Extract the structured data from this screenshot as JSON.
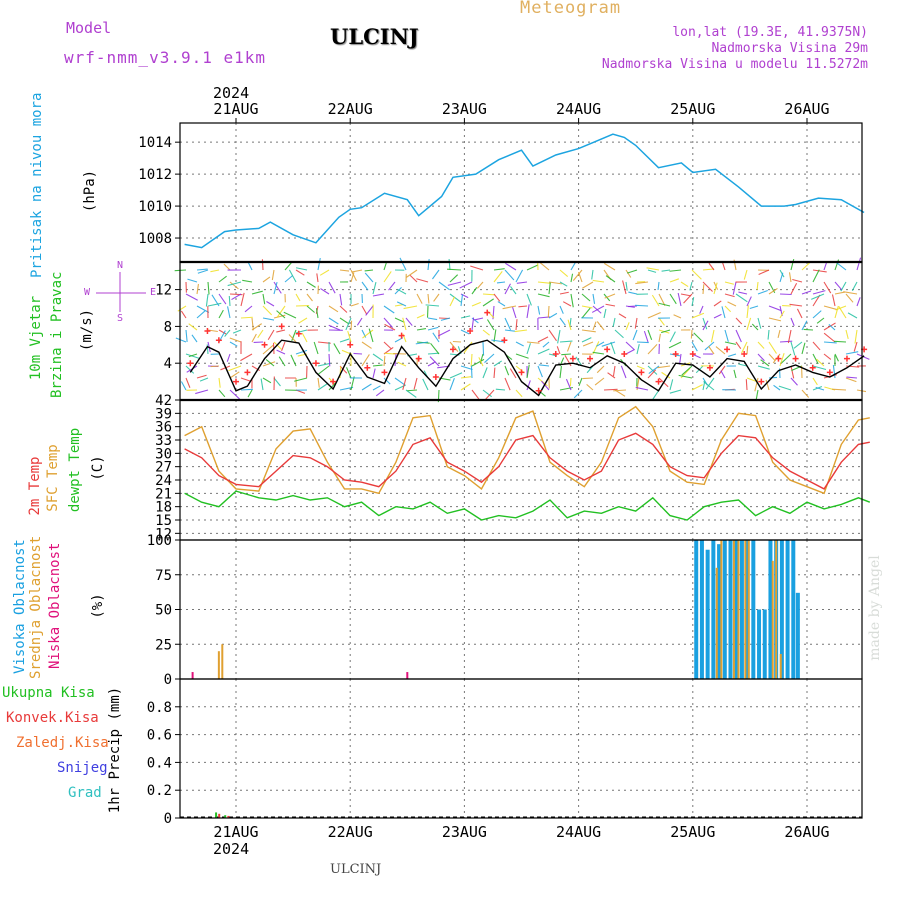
{
  "header": {
    "model_label": "Model",
    "model_name": "wrf-nmm_v3.9.1 e1km",
    "station": "ULCINJ",
    "meteogram": "Meteogram",
    "lonlat": "lon,lat (19.3E, 41.9375N)",
    "elevation": "Nadmorska Visina 29m",
    "model_elevation": "Nadmorska Visina u modelu 11.5272m",
    "year_top": "2024",
    "year_bottom": "2024",
    "footer_station": "ULCINJ",
    "watermark": "made by Angel"
  },
  "colors": {
    "pressure": "#1ca4e0",
    "temp2m": "#e83a3a",
    "sfc": "#dfa030",
    "dewpt": "#22c022",
    "high_cloud": "#1aa0e0",
    "mid_cloud": "#e0a030",
    "low_cloud": "#e0107a",
    "wind_speed": "#000000",
    "gust": "#ff3333",
    "purple": "#b040d0"
  },
  "days": [
    "21AUG",
    "22AUG",
    "23AUG",
    "24AUG",
    "25AUG",
    "26AUG"
  ],
  "panel_labels": {
    "pressure": [
      "Pritisak na nivou mora",
      "(hPa)"
    ],
    "wind": [
      "10m Vjetar",
      "Brzina i Pravac",
      "(m/s)"
    ],
    "temp": [
      "2m Temp",
      "SFC Temp",
      "dewpt Temp",
      "(C)"
    ],
    "cloud": [
      "Visoka Oblacnost",
      "Srednja Oblacnost",
      "Niska Oblacnost",
      "(%)"
    ],
    "precip_unit": "1hr Precip (mm)",
    "precip_legend": [
      "Ukupna Kisa",
      "Konvek.Kisa",
      "Zaledj.Kisa",
      "Snijeg",
      "Grad"
    ],
    "compass": {
      "n": "N",
      "s": "S",
      "w": "W",
      "e": "E"
    }
  },
  "chart_data": [
    {
      "type": "line",
      "title": "",
      "ylabel": "(hPa)",
      "ylim": [
        1006.5,
        1015.2
      ],
      "yticks": [
        "1008",
        "1010",
        "1012",
        "1014"
      ],
      "x_days": [
        20.55,
        20.7,
        20.9,
        21.0,
        21.2,
        21.3,
        21.5,
        21.7,
        21.9,
        22.0,
        22.1,
        22.3,
        22.5,
        22.6,
        22.8,
        22.9,
        23.1,
        23.3,
        23.5,
        23.6,
        23.8,
        24.0,
        24.1,
        24.3,
        24.4,
        24.5,
        24.7,
        24.9,
        25.0,
        25.2,
        25.4,
        25.6,
        25.8,
        25.9,
        26.1,
        26.3,
        26.5
      ],
      "series": [
        {
          "name": "Pritisak na nivou mora",
          "values": [
            1007.6,
            1007.4,
            1008.4,
            1008.5,
            1008.6,
            1009.0,
            1008.2,
            1007.7,
            1009.3,
            1009.8,
            1009.9,
            1010.8,
            1010.4,
            1009.4,
            1010.6,
            1011.8,
            1012.0,
            1012.9,
            1013.5,
            1012.5,
            1013.2,
            1013.6,
            1013.9,
            1014.5,
            1014.3,
            1013.8,
            1012.4,
            1012.7,
            1012.1,
            1012.3,
            1011.2,
            1010.0,
            1010.0,
            1010.1,
            1010.5,
            1010.4,
            1009.6
          ]
        }
      ]
    },
    {
      "type": "line",
      "title": "",
      "ylabel": "(m/s)",
      "ylim": [
        0,
        15
      ],
      "yticks": [
        "4",
        "8",
        "12"
      ],
      "x_days": [
        20.6,
        20.75,
        20.85,
        21.0,
        21.1,
        21.25,
        21.4,
        21.55,
        21.7,
        21.85,
        22.0,
        22.15,
        22.3,
        22.45,
        22.6,
        22.75,
        22.9,
        23.05,
        23.2,
        23.35,
        23.5,
        23.65,
        23.8,
        23.95,
        24.1,
        24.25,
        24.4,
        24.55,
        24.7,
        24.85,
        25.0,
        25.15,
        25.3,
        25.45,
        25.6,
        25.75,
        25.9,
        26.05,
        26.2,
        26.35,
        26.5
      ],
      "series": [
        {
          "name": "",
          "values": [
            3.0,
            5.8,
            5.2,
            1.0,
            1.5,
            4.5,
            6.5,
            6.2,
            3.0,
            1.2,
            5.0,
            2.5,
            1.8,
            5.8,
            3.5,
            1.5,
            4.5,
            6.0,
            6.5,
            5.2,
            2.0,
            0.5,
            3.8,
            4.0,
            3.5,
            4.8,
            4.0,
            2.2,
            1.0,
            4.0,
            3.8,
            2.5,
            4.5,
            4.2,
            1.2,
            3.2,
            3.8,
            3.0,
            2.5,
            3.5,
            4.8
          ]
        },
        {
          "name": "",
          "values": [
            4.0,
            7.5,
            6.5,
            2.0,
            3.0,
            6.0,
            8.0,
            7.2,
            4.0,
            2.0,
            6.0,
            3.5,
            3.0,
            7.0,
            4.5,
            2.5,
            5.5,
            7.5,
            9.5,
            6.5,
            3.0,
            1.0,
            5.0,
            4.5,
            4.5,
            5.5,
            5.0,
            3.0,
            2.0,
            5.0,
            5.0,
            3.5,
            5.5,
            5.0,
            2.0,
            4.5,
            4.5,
            3.5,
            3.0,
            4.5,
            5.5
          ]
        }
      ]
    },
    {
      "type": "line",
      "title": "",
      "ylabel": "(C)",
      "ylim": [
        10.5,
        42
      ],
      "yticks": [
        "12",
        "15",
        "18",
        "21",
        "24",
        "27",
        "30",
        "33",
        "36",
        "39",
        "42"
      ],
      "x_days": [
        20.55,
        20.7,
        20.85,
        21.0,
        21.2,
        21.35,
        21.5,
        21.65,
        21.8,
        21.95,
        22.1,
        22.25,
        22.4,
        22.55,
        22.7,
        22.85,
        23.0,
        23.15,
        23.3,
        23.45,
        23.6,
        23.75,
        23.9,
        24.05,
        24.2,
        24.35,
        24.5,
        24.65,
        24.8,
        24.95,
        25.1,
        25.25,
        25.4,
        25.55,
        25.7,
        25.85,
        26.0,
        26.15,
        26.3,
        26.45,
        26.55
      ],
      "series": [
        {
          "name": "2m Temp",
          "values": [
            31,
            29,
            25,
            23,
            22.5,
            26,
            29.5,
            29,
            27,
            24,
            23.5,
            22.5,
            26,
            32,
            33.5,
            28,
            26,
            23.5,
            27,
            33,
            34,
            29,
            26,
            24,
            26,
            33,
            34.5,
            32,
            27,
            25,
            24.5,
            30,
            34,
            33.5,
            29,
            26,
            24,
            22,
            28,
            32,
            32.5
          ]
        },
        {
          "name": "SFC Temp",
          "values": [
            34,
            36,
            26,
            22,
            21.5,
            31,
            35,
            35.5,
            28,
            22,
            22,
            21,
            28,
            38,
            38.5,
            27,
            25,
            22,
            29,
            38,
            39.5,
            28,
            25,
            22.5,
            28,
            38,
            40.5,
            36,
            26,
            23.5,
            23,
            33,
            39,
            38.5,
            28,
            24,
            22.5,
            21,
            32,
            37.5,
            38
          ]
        },
        {
          "name": "dewpt Temp",
          "values": [
            21,
            19,
            18,
            21.5,
            20,
            19.5,
            20.5,
            19.5,
            20,
            18,
            19,
            16,
            18,
            17.5,
            19,
            16.5,
            17.5,
            15,
            16,
            15.5,
            17,
            19.5,
            15.5,
            17,
            16.5,
            18,
            17,
            20,
            16,
            15,
            18,
            19,
            19.5,
            16,
            18,
            16.5,
            19,
            17.5,
            18.5,
            20,
            19
          ]
        }
      ]
    },
    {
      "type": "bar",
      "title": "",
      "ylabel": "(%)",
      "ylim": [
        0,
        100
      ],
      "yticks": [
        "0",
        "25",
        "50",
        "75",
        "100"
      ],
      "series": [
        {
          "name": "Visoka Oblacnost",
          "x_days": [
            25.03,
            25.08,
            25.13,
            25.18,
            25.23,
            25.28,
            25.33,
            25.38,
            25.43,
            25.48,
            25.53,
            25.58,
            25.63,
            25.68,
            25.73,
            25.78,
            25.83,
            25.88,
            25.92
          ],
          "values": [
            100,
            100,
            93,
            100,
            97,
            100,
            100,
            100,
            100,
            100,
            100,
            50,
            50,
            100,
            100,
            100,
            100,
            100,
            62
          ]
        },
        {
          "name": "Srednja Oblacnost",
          "x_days": [
            20.85,
            20.88,
            25.21,
            25.25,
            25.36,
            25.4,
            25.46,
            25.49,
            25.7,
            25.73,
            25.77
          ],
          "values": [
            20,
            25,
            80,
            100,
            100,
            100,
            100,
            100,
            85,
            100,
            18
          ]
        },
        {
          "name": "Niska Oblacnost",
          "x_days": [
            20.62,
            22.5
          ],
          "values": [
            5,
            5
          ]
        }
      ]
    },
    {
      "type": "bar",
      "title": "",
      "ylabel": "1hr Precip (mm)",
      "ylim": [
        0,
        1.0
      ],
      "yticks": [
        "0",
        "0.2",
        "0.4",
        "0.6",
        "0.8"
      ],
      "series": [
        {
          "name": "Ukupna Kisa",
          "x_days": [
            20.83,
            20.91
          ],
          "values": [
            0.04,
            0.02
          ]
        },
        {
          "name": "Konvek.Kisa",
          "x_days": [
            20.84,
            20.92
          ],
          "values": [
            0.03,
            0.015
          ]
        }
      ]
    }
  ]
}
